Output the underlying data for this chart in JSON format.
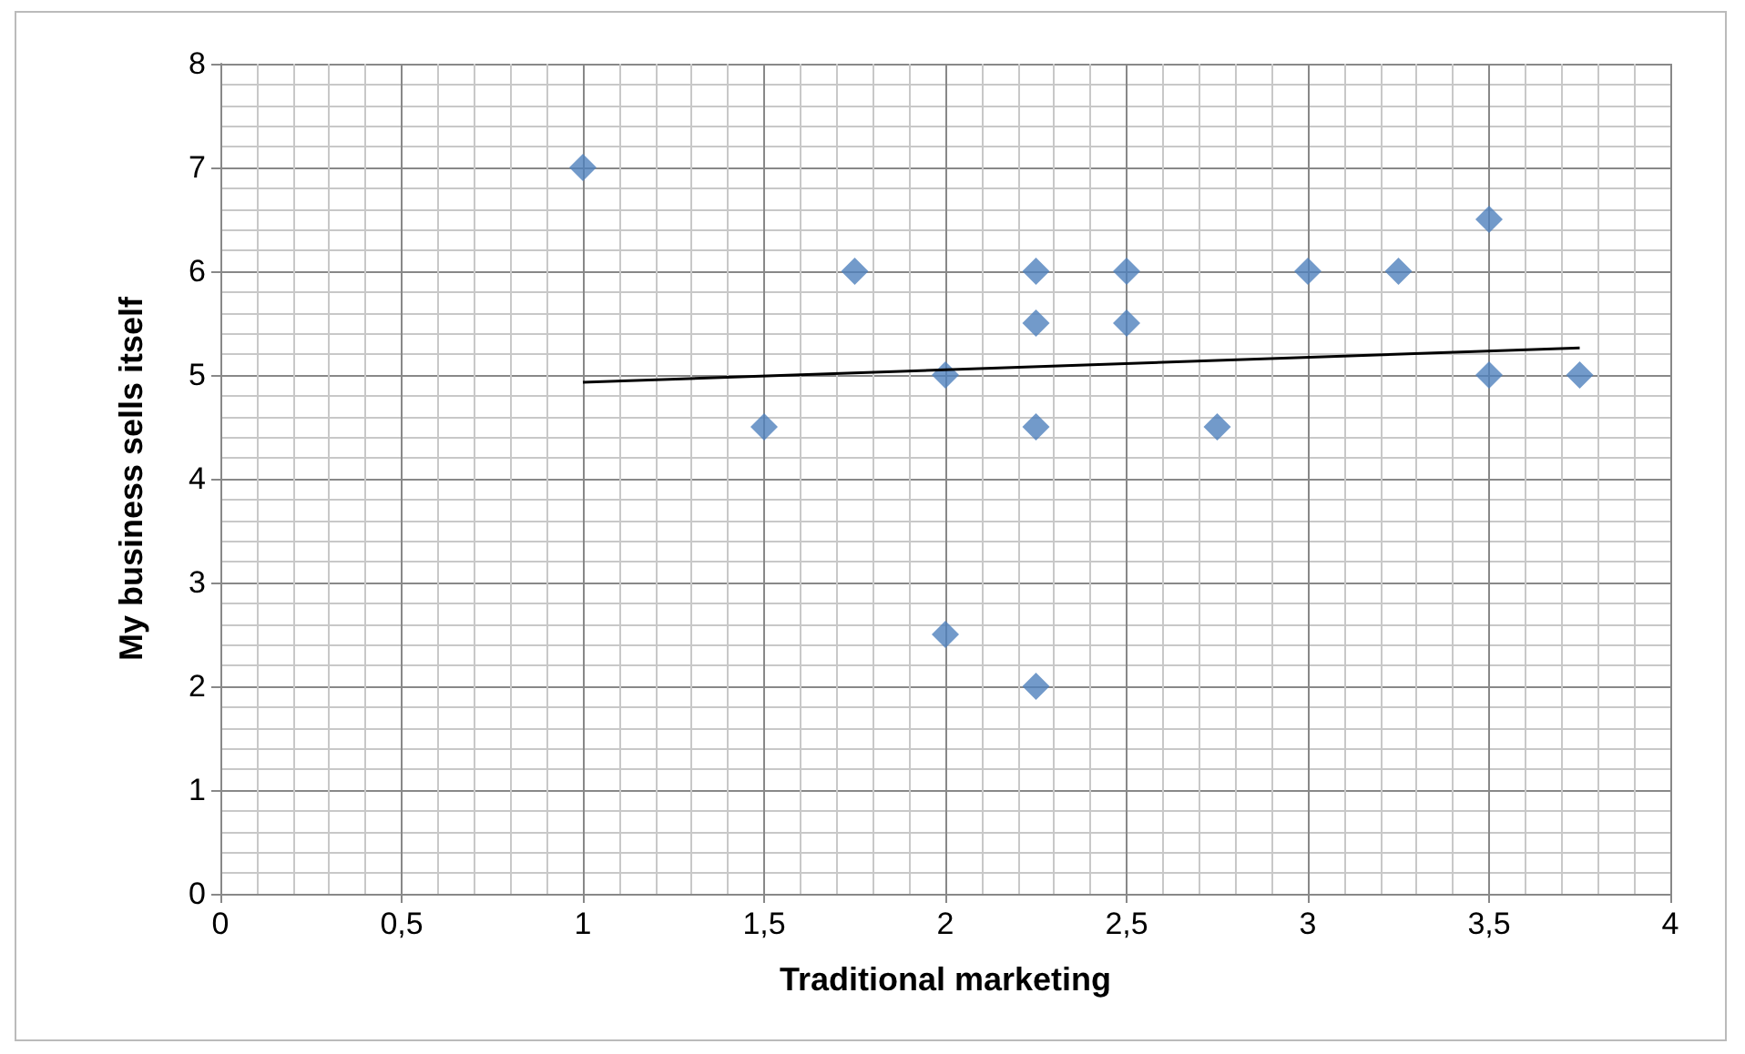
{
  "chart_data": {
    "type": "scatter",
    "xlabel": "Traditional marketing",
    "ylabel": "My business sells itself",
    "xlim": [
      0,
      4
    ],
    "ylim": [
      0,
      8
    ],
    "xticks": [
      0,
      {
        "value": 0.5,
        "label": "0,5"
      },
      1,
      {
        "value": 1.5,
        "label": "1,5"
      },
      2,
      {
        "value": 2.5,
        "label": "2,5"
      },
      3,
      {
        "value": 3.5,
        "label": "3,5"
      },
      4
    ],
    "yticks": [
      0,
      1,
      2,
      3,
      4,
      5,
      6,
      7,
      8
    ],
    "grid": true,
    "marker": "diamond",
    "series": [
      {
        "color": "#4f81bd",
        "x": [
          1,
          1.5,
          1.75,
          2,
          2,
          2.25,
          2.25,
          2.25,
          2.25,
          2.5,
          2.5,
          2.75,
          3,
          3.25,
          3.5,
          3.5,
          3.75
        ],
        "values": [
          7,
          4.5,
          6,
          5,
          2.5,
          6,
          5.5,
          4.5,
          2,
          6,
          5.5,
          4.5,
          6,
          6,
          6.5,
          5,
          5
        ]
      },
      {
        "type": "line",
        "color": "#000000",
        "marker": "none",
        "x": [
          1,
          3.75
        ],
        "values": [
          4.93,
          5.26
        ]
      }
    ]
  }
}
